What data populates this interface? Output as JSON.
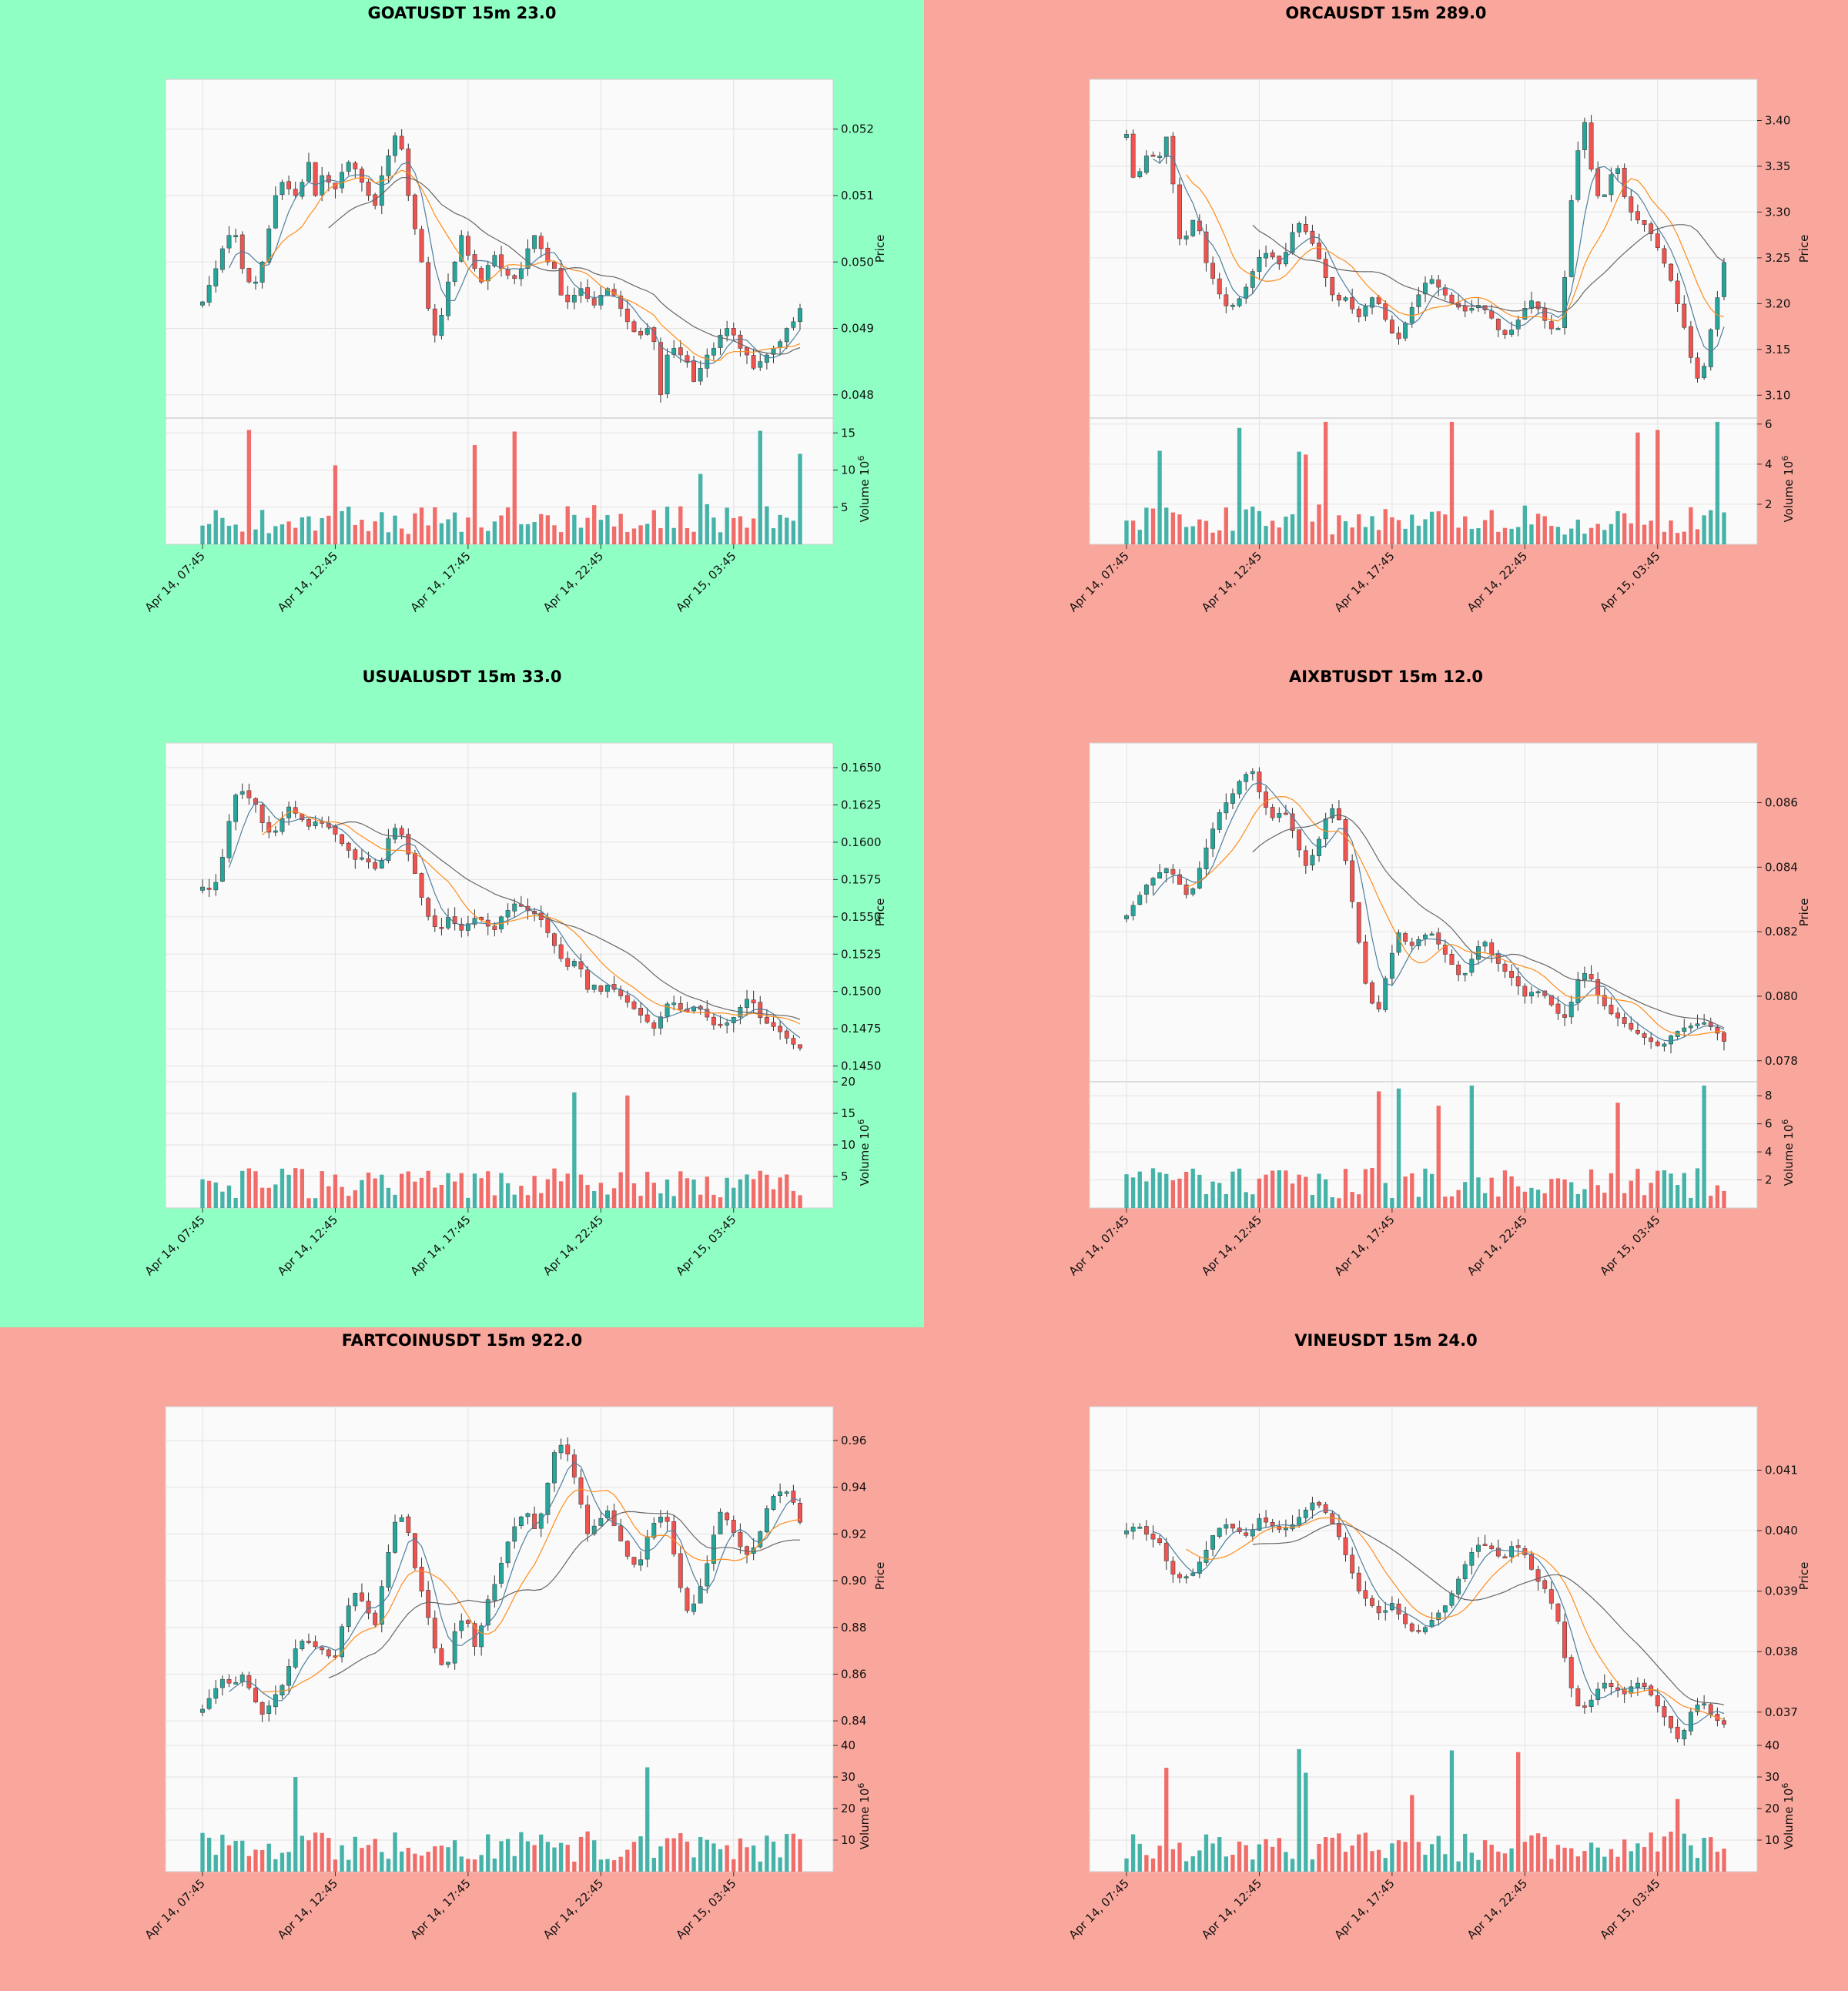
{
  "colors": {
    "up": "#26a69a",
    "down": "#ef5350",
    "ma_fast": "#4d7f9e",
    "ma_mid": "#ff8c1a",
    "ma_slow": "#666666",
    "bg_up": "#90ffc4",
    "bg_down": "#f9a79c"
  },
  "x_tick_labels": [
    "Apr 14, 07:45",
    "Apr 14, 12:45",
    "Apr 14, 17:45",
    "Apr 14, 22:45",
    "Apr 15, 03:45"
  ],
  "price_axis_label": "Price",
  "volume_axis_label": "Volume  10",
  "volume_axis_exponent": "6",
  "chart_data": [
    {
      "type": "candlestick",
      "title": "GOATUSDT 15m 23.0",
      "background": "up",
      "price_ticks": [
        0.048,
        0.049,
        0.05,
        0.051,
        0.052
      ],
      "price_ylim": [
        0.04765,
        0.05275
      ],
      "volume_ticks": [
        5,
        10,
        15
      ],
      "volume_ylim": [
        0,
        17
      ],
      "bars": 91,
      "close": [
        0.0494,
        0.04965,
        0.0499,
        0.0502,
        0.0504,
        0.0504,
        0.0499,
        0.0497,
        0.0497,
        0.05,
        0.0505,
        0.051,
        0.0512,
        0.0511,
        0.051,
        0.0512,
        0.0515,
        0.051,
        0.0513,
        0.0512,
        0.0511,
        0.05135,
        0.0515,
        0.0514,
        0.0512,
        0.051,
        0.05085,
        0.0513,
        0.0516,
        0.0519,
        0.0517,
        0.051,
        0.0505,
        0.05,
        0.0493,
        0.0489,
        0.0492,
        0.0497,
        0.05,
        0.0504,
        0.0501,
        0.0499,
        0.0497,
        0.04995,
        0.0501,
        0.0499,
        0.0498,
        0.04975,
        0.0499,
        0.0502,
        0.0504,
        0.0502,
        0.05,
        0.0499,
        0.0495,
        0.0494,
        0.0495,
        0.0496,
        0.04945,
        0.04935,
        0.0495,
        0.0496,
        0.0495,
        0.0493,
        0.0491,
        0.04895,
        0.0489,
        0.049,
        0.0488,
        0.048,
        0.0486,
        0.0487,
        0.0486,
        0.0485,
        0.0482,
        0.0484,
        0.0486,
        0.0487,
        0.0489,
        0.049,
        0.0489,
        0.0487,
        0.0486,
        0.0484,
        0.0485,
        0.0486,
        0.0487,
        0.0488,
        0.049,
        0.0491,
        0.0493
      ]
    },
    {
      "type": "candlestick",
      "title": "ORCAUSDT 15m 289.0",
      "background": "down",
      "price_ticks": [
        3.1,
        3.15,
        3.2,
        3.25,
        3.3,
        3.35,
        3.4
      ],
      "price_ylim": [
        3.075,
        3.445
      ],
      "volume_ticks": [
        2,
        4,
        6
      ],
      "volume_ylim": [
        0,
        6.3
      ],
      "bars": 91,
      "close": [
        3.385,
        3.33,
        3.35,
        3.37,
        3.35,
        3.39,
        3.33,
        3.26,
        3.28,
        3.3,
        3.25,
        3.23,
        3.21,
        3.195,
        3.2,
        3.21,
        3.23,
        3.25,
        3.255,
        3.25,
        3.24,
        3.27,
        3.29,
        3.28,
        3.265,
        3.245,
        3.22,
        3.2,
        3.21,
        3.195,
        3.185,
        3.2,
        3.21,
        3.19,
        3.17,
        3.16,
        3.18,
        3.2,
        3.215,
        3.23,
        3.22,
        3.21,
        3.2,
        3.195,
        3.19,
        3.2,
        3.195,
        3.185,
        3.17,
        3.165,
        3.175,
        3.19,
        3.205,
        3.195,
        3.18,
        3.17,
        3.175,
        3.29,
        3.36,
        3.4,
        3.34,
        3.31,
        3.325,
        3.36,
        3.32,
        3.3,
        3.29,
        3.285,
        3.27,
        3.25,
        3.23,
        3.2,
        3.17,
        3.13,
        3.11,
        3.16,
        3.2,
        3.245
      ]
    },
    {
      "type": "candlestick",
      "title": "USUALUSDT 15m 33.0",
      "background": "up",
      "price_ticks": [
        0.145,
        0.1475,
        0.15,
        0.1525,
        0.155,
        0.1575,
        0.16,
        0.1625,
        0.165
      ],
      "price_ylim": [
        0.14395,
        0.16665
      ],
      "volume_ticks": [
        5,
        10,
        15,
        20
      ],
      "volume_ylim": [
        0,
        20
      ],
      "bars": 91,
      "close": [
        0.157,
        0.1568,
        0.1575,
        0.16,
        0.163,
        0.1635,
        0.163,
        0.1625,
        0.161,
        0.1605,
        0.161,
        0.1625,
        0.162,
        0.1615,
        0.161,
        0.1615,
        0.1612,
        0.1608,
        0.16,
        0.1595,
        0.1588,
        0.159,
        0.1585,
        0.158,
        0.16,
        0.161,
        0.1605,
        0.159,
        0.1575,
        0.1555,
        0.1545,
        0.154,
        0.155,
        0.1545,
        0.154,
        0.1548,
        0.155,
        0.1545,
        0.154,
        0.155,
        0.1555,
        0.156,
        0.1555,
        0.1553,
        0.155,
        0.154,
        0.153,
        0.152,
        0.1515,
        0.1525,
        0.15,
        0.1505,
        0.15,
        0.1505,
        0.15,
        0.1495,
        0.149,
        0.1485,
        0.148,
        0.1475,
        0.1485,
        0.1495,
        0.149,
        0.1485,
        0.149,
        0.1488,
        0.1482,
        0.1476,
        0.1478,
        0.148,
        0.1488,
        0.1495,
        0.1492,
        0.148,
        0.1478,
        0.1475,
        0.147,
        0.1465,
        0.1462
      ]
    },
    {
      "type": "candlestick",
      "title": "AIXBTUSDT 15m 12.0",
      "background": "down",
      "price_ticks": [
        0.078,
        0.08,
        0.082,
        0.084,
        0.086
      ],
      "price_ylim": [
        0.07735,
        0.08785
      ],
      "volume_ticks": [
        2,
        4,
        6,
        8
      ],
      "volume_ylim": [
        0,
        9
      ],
      "bars": 91,
      "close": [
        0.0825,
        0.083,
        0.0835,
        0.0838,
        0.084,
        0.0835,
        0.083,
        0.084,
        0.085,
        0.0858,
        0.0862,
        0.0868,
        0.087,
        0.086,
        0.0855,
        0.0858,
        0.085,
        0.084,
        0.0845,
        0.0855,
        0.086,
        0.084,
        0.082,
        0.08,
        0.0795,
        0.081,
        0.082,
        0.0815,
        0.0818,
        0.082,
        0.0815,
        0.081,
        0.0805,
        0.0812,
        0.0818,
        0.0812,
        0.0808,
        0.0805,
        0.08,
        0.0802,
        0.08,
        0.0795,
        0.0793,
        0.0805,
        0.0808,
        0.08,
        0.0795,
        0.0793,
        0.079,
        0.0788,
        0.0786,
        0.0784,
        0.0788,
        0.079,
        0.0791,
        0.0792,
        0.079,
        0.0786
      ]
    },
    {
      "type": "candlestick",
      "title": "FARTCOINUSDT 15m 922.0",
      "background": "down",
      "price_ticks": [
        0.84,
        0.86,
        0.88,
        0.9,
        0.92,
        0.94,
        0.96
      ],
      "price_ylim": [
        0.8295,
        0.9745
      ],
      "volume_ticks": [
        10,
        20,
        30,
        40
      ],
      "volume_ylim": [
        0,
        40
      ],
      "bars": 91,
      "close": [
        0.845,
        0.852,
        0.858,
        0.855,
        0.86,
        0.85,
        0.842,
        0.85,
        0.856,
        0.87,
        0.875,
        0.872,
        0.87,
        0.865,
        0.885,
        0.895,
        0.89,
        0.88,
        0.905,
        0.925,
        0.928,
        0.905,
        0.89,
        0.87,
        0.86,
        0.88,
        0.885,
        0.87,
        0.89,
        0.9,
        0.915,
        0.925,
        0.93,
        0.92,
        0.94,
        0.96,
        0.955,
        0.94,
        0.92,
        0.925,
        0.93,
        0.92,
        0.91,
        0.905,
        0.92,
        0.928,
        0.925,
        0.9,
        0.885,
        0.895,
        0.91,
        0.93,
        0.925,
        0.915,
        0.91,
        0.92,
        0.935,
        0.938,
        0.938,
        0.925
      ]
    },
    {
      "type": "candlestick",
      "title": "VINEUSDT 15m 24.0",
      "background": "down",
      "price_ticks": [
        0.037,
        0.038,
        0.039,
        0.04,
        0.041
      ],
      "price_ylim": [
        0.03645,
        0.04205
      ],
      "volume_ticks": [
        10,
        20,
        30,
        40
      ],
      "volume_ylim": [
        0,
        40
      ],
      "bars": 91,
      "close": [
        0.04,
        0.0401,
        0.0399,
        0.0398,
        0.0393,
        0.0392,
        0.0393,
        0.0396,
        0.04,
        0.0401,
        0.04,
        0.0399,
        0.0402,
        0.0401,
        0.04,
        0.0401,
        0.0403,
        0.0405,
        0.0403,
        0.04,
        0.0395,
        0.039,
        0.0388,
        0.0386,
        0.0388,
        0.0385,
        0.0383,
        0.0384,
        0.0386,
        0.0388,
        0.0392,
        0.0396,
        0.0398,
        0.0397,
        0.0395,
        0.0398,
        0.0396,
        0.0392,
        0.039,
        0.0385,
        0.0375,
        0.037,
        0.0372,
        0.0375,
        0.0374,
        0.0373,
        0.0375,
        0.0374,
        0.0371,
        0.0368,
        0.0365,
        0.037,
        0.0372,
        0.0369,
        0.0368
      ]
    }
  ]
}
